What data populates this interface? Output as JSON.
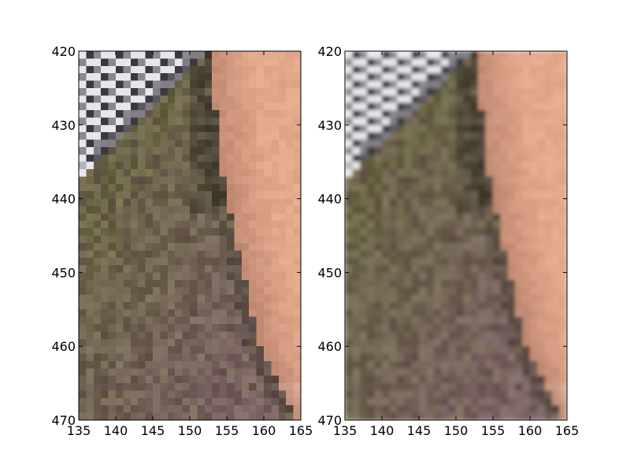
{
  "figure": {
    "background": "#ffffff",
    "axis_color": "#000000"
  },
  "chart_data": [
    {
      "type": "image",
      "title": "",
      "rendering": "pixelated",
      "xlim": [
        135,
        165
      ],
      "ylim": [
        470,
        420
      ],
      "x_ticks": [
        135,
        140,
        145,
        150,
        155,
        160,
        165
      ],
      "y_ticks": [
        420,
        430,
        440,
        450,
        460,
        470
      ],
      "x_tick_labels": [
        "135",
        "140",
        "145",
        "150",
        "155",
        "160",
        "165"
      ],
      "y_tick_labels": [
        "420",
        "430",
        "440",
        "450",
        "460",
        "470"
      ]
    },
    {
      "type": "image",
      "title": "",
      "rendering": "smooth",
      "xlim": [
        135,
        165
      ],
      "ylim": [
        470,
        420
      ],
      "x_ticks": [
        135,
        140,
        145,
        150,
        155,
        160,
        165
      ],
      "y_ticks": [
        420,
        430,
        440,
        450,
        460,
        470
      ],
      "x_tick_labels": [
        "135",
        "140",
        "145",
        "150",
        "155",
        "160",
        "165"
      ],
      "y_tick_labels": [
        "420",
        "430",
        "440",
        "450",
        "460",
        "470"
      ]
    }
  ],
  "image_palette": {
    "skin": "#e2a88c",
    "skin_light": "#f2c4ac",
    "skin_shadow": "#b07a66",
    "hair_olive": "#6b6548",
    "hair_olive_light": "#857a5a",
    "hair_dark": "#3e3a2c",
    "hair_mauve": "#7a6462",
    "hair_mauve_dark": "#5e4946",
    "fabric_white": "#e8e6ea",
    "fabric_gray": "#8a8890",
    "fabric_dark": "#3b3940"
  }
}
